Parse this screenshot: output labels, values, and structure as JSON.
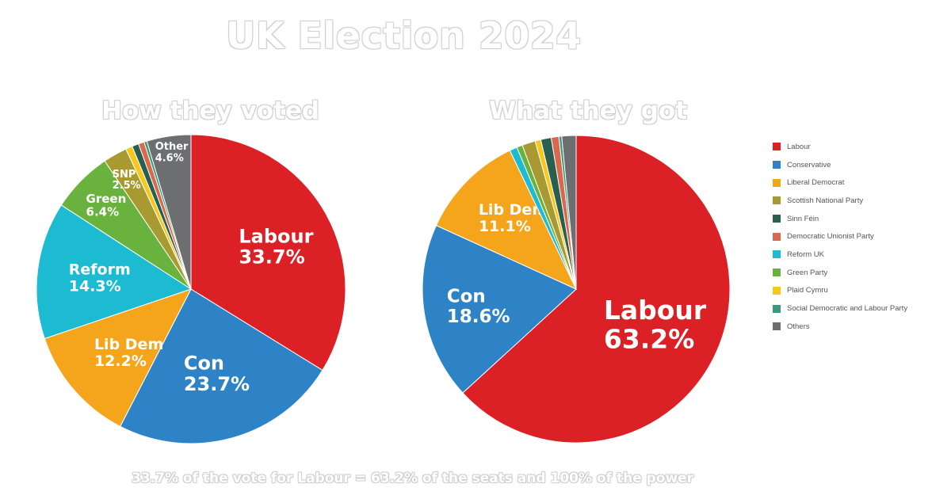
{
  "title": "UK Election 2024",
  "footnote": "33.7% of the vote for Labour = 63.2% of the seats and 100% of the power",
  "chart_data": [
    {
      "type": "pie",
      "title": "How they voted",
      "slices": [
        {
          "name": "Labour",
          "value": 33.7,
          "color": "#dc2126",
          "label": "Labour",
          "pct": "33.7%"
        },
        {
          "name": "Conservative",
          "value": 23.7,
          "color": "#2e82c6",
          "label": "Con",
          "pct": "23.7%"
        },
        {
          "name": "Liberal Democrat",
          "value": 12.2,
          "color": "#f4a51c",
          "label": "Lib Dem",
          "pct": "12.2%"
        },
        {
          "name": "Reform UK",
          "value": 14.3,
          "color": "#1cbbd2",
          "label": "Reform",
          "pct": "14.3%"
        },
        {
          "name": "Green Party",
          "value": 6.4,
          "color": "#6ab23e",
          "label": "Green",
          "pct": "6.4%"
        },
        {
          "name": "Scottish National Party",
          "value": 2.5,
          "color": "#a89a30",
          "label": "SNP",
          "pct": "2.5%"
        },
        {
          "name": "Plaid Cymru",
          "value": 0.7,
          "color": "#f7c81b",
          "label": "",
          "pct": ""
        },
        {
          "name": "Sinn Féin",
          "value": 0.7,
          "color": "#2a5f4f",
          "label": "",
          "pct": ""
        },
        {
          "name": "Democratic Unionist Party",
          "value": 0.6,
          "color": "#d8694d",
          "label": "",
          "pct": ""
        },
        {
          "name": "Social Democratic and Labour Party",
          "value": 0.3,
          "color": "#3a9a7b",
          "label": "",
          "pct": ""
        },
        {
          "name": "Others",
          "value": 4.6,
          "color": "#6d6e70",
          "label": "Other",
          "pct": "4.6%"
        }
      ]
    },
    {
      "type": "pie",
      "title": "What they got",
      "slices": [
        {
          "name": "Labour",
          "value": 63.2,
          "color": "#dc2126",
          "label": "Labour",
          "pct": "63.2%"
        },
        {
          "name": "Conservative",
          "value": 18.6,
          "color": "#2e82c6",
          "label": "Con",
          "pct": "18.6%"
        },
        {
          "name": "Liberal Democrat",
          "value": 11.1,
          "color": "#f4a51c",
          "label": "Lib Dem",
          "pct": "11.1%"
        },
        {
          "name": "Reform UK",
          "value": 0.8,
          "color": "#1cbbd2",
          "label": "",
          "pct": ""
        },
        {
          "name": "Green Party",
          "value": 0.6,
          "color": "#6ab23e",
          "label": "",
          "pct": ""
        },
        {
          "name": "Scottish National Party",
          "value": 1.4,
          "color": "#a89a30",
          "label": "",
          "pct": ""
        },
        {
          "name": "Plaid Cymru",
          "value": 0.6,
          "color": "#f7c81b",
          "label": "",
          "pct": ""
        },
        {
          "name": "Sinn Féin",
          "value": 1.1,
          "color": "#2a5f4f",
          "label": "",
          "pct": ""
        },
        {
          "name": "Democratic Unionist Party",
          "value": 0.8,
          "color": "#d8694d",
          "label": "",
          "pct": ""
        },
        {
          "name": "Social Democratic and Labour Party",
          "value": 0.3,
          "color": "#3a9a7b",
          "label": "",
          "pct": ""
        },
        {
          "name": "Others",
          "value": 1.5,
          "color": "#6d6e70",
          "label": "",
          "pct": ""
        }
      ]
    }
  ],
  "legend": [
    {
      "label": "Labour",
      "color": "#dc2126"
    },
    {
      "label": "Conservative",
      "color": "#2e82c6"
    },
    {
      "label": "Liberal Democrat",
      "color": "#f4a51c"
    },
    {
      "label": "Scottish National Party",
      "color": "#a89a30"
    },
    {
      "label": "Sinn Féin",
      "color": "#2a5f4f"
    },
    {
      "label": "Democratic Unionist Party",
      "color": "#d8694d"
    },
    {
      "label": "Reform UK",
      "color": "#1cbbd2"
    },
    {
      "label": "Green Party",
      "color": "#6ab23e"
    },
    {
      "label": "Plaid Cymru",
      "color": "#f7c81b"
    },
    {
      "label": "Social Democratic and Labour Party",
      "color": "#3a9a7b"
    },
    {
      "label": "Others",
      "color": "#6d6e70"
    }
  ]
}
